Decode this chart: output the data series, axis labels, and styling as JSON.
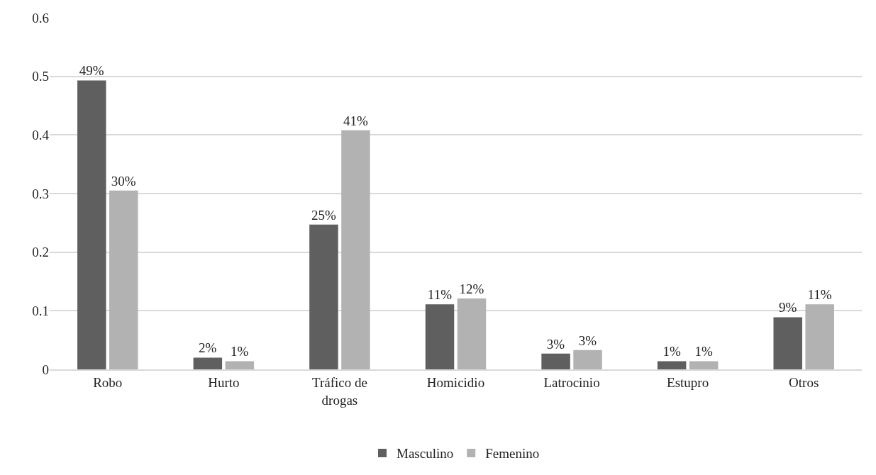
{
  "chart_data": {
    "type": "bar",
    "categories": [
      "Robo",
      "Hurto",
      "Tráfico de drogas",
      "Homicidio",
      "Latrocinio",
      "Estupro",
      "Otros"
    ],
    "series": [
      {
        "name": "Masculino",
        "color": "#5f5f5f",
        "values": [
          0.493,
          0.02,
          0.247,
          0.111,
          0.027,
          0.014,
          0.089
        ],
        "value_labels": [
          "49%",
          "2%",
          "25%",
          "11%",
          "3%",
          "1%",
          "9%"
        ]
      },
      {
        "name": "Femenino",
        "color": "#b2b2b2",
        "values": [
          0.305,
          0.014,
          0.408,
          0.121,
          0.033,
          0.014,
          0.111
        ],
        "value_labels": [
          "30%",
          "1%",
          "41%",
          "12%",
          "3%",
          "1%",
          "11%"
        ]
      }
    ],
    "ylim": [
      0,
      0.6
    ],
    "yticks": [
      {
        "value": 0,
        "label": "0"
      },
      0.1,
      0.2,
      0.3,
      0.4,
      0.5,
      0.6
    ],
    "grid": "y",
    "legend": "bottom"
  }
}
